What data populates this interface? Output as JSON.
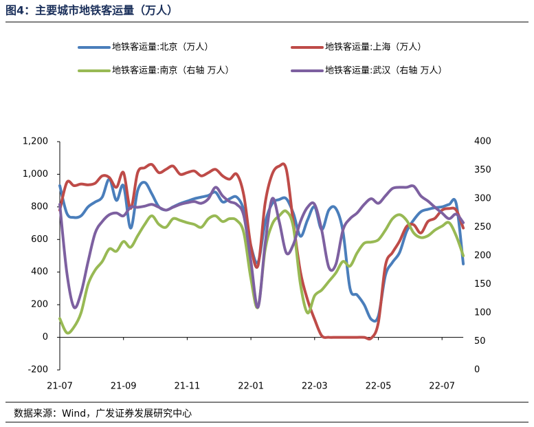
{
  "chart_data": {
    "type": "line",
    "title": "图4：主要城市地铁客运量（万人）",
    "categories": [
      "21-07",
      null,
      null,
      null,
      null,
      null,
      null,
      null,
      null,
      "21-09",
      null,
      null,
      null,
      null,
      null,
      null,
      null,
      null,
      "21-11",
      null,
      null,
      null,
      null,
      null,
      null,
      null,
      null,
      "22-01",
      null,
      null,
      null,
      null,
      null,
      null,
      null,
      null,
      "22-03",
      null,
      null,
      null,
      null,
      null,
      null,
      null,
      null,
      "22-05",
      null,
      null,
      null,
      null,
      null,
      null,
      null,
      null,
      "22-07",
      null,
      null,
      null
    ],
    "series": [
      {
        "name": "地铁客运量:北京（万人）",
        "color": "#4a7ebb",
        "axis": "y",
        "values": [
          930,
          760,
          735,
          745,
          800,
          830,
          860,
          970,
          840,
          930,
          670,
          900,
          950,
          880,
          800,
          780,
          800,
          820,
          835,
          850,
          860,
          870,
          890,
          830,
          850,
          860,
          780,
          560,
          460,
          700,
          820,
          845,
          850,
          760,
          620,
          720,
          800,
          660,
          780,
          790,
          650,
          300,
          260,
          200,
          110,
          130,
          380,
          460,
          520,
          650,
          720,
          770,
          785,
          795,
          800,
          815,
          820,
          450
        ]
      },
      {
        "name": "地铁客运量:上海（万人）",
        "color": "#be4b48",
        "axis": "y",
        "values": [
          780,
          950,
          930,
          940,
          935,
          945,
          990,
          980,
          920,
          1010,
          790,
          1010,
          1040,
          1060,
          1010,
          1030,
          1050,
          1000,
          1010,
          1020,
          990,
          1010,
          1030,
          990,
          970,
          1000,
          870,
          560,
          440,
          820,
          1000,
          1050,
          1030,
          700,
          400,
          230,
          110,
          10,
          0,
          0,
          0,
          0,
          0,
          0,
          -5,
          90,
          440,
          520,
          590,
          680,
          690,
          640,
          710,
          730,
          780,
          790,
          780,
          670
        ]
      },
      {
        "name": "地铁客运量:南京（右轴 万人）",
        "color": "#98b954",
        "axis": "y2",
        "values": [
          90,
          65,
          75,
          100,
          150,
          175,
          190,
          212,
          208,
          225,
          215,
          235,
          255,
          270,
          255,
          250,
          265,
          262,
          258,
          255,
          250,
          265,
          270,
          260,
          265,
          262,
          240,
          160,
          110,
          210,
          255,
          270,
          278,
          250,
          150,
          100,
          130,
          140,
          155,
          170,
          190,
          182,
          205,
          222,
          224,
          228,
          245,
          265,
          272,
          262,
          240,
          232,
          235,
          245,
          252,
          258,
          235,
          200
        ]
      },
      {
        "name": "地铁客运量:武汉（右轴 万人）",
        "color": "#7d60a0",
        "axis": "y2",
        "values": [
          290,
          170,
          110,
          135,
          190,
          240,
          260,
          272,
          275,
          270,
          285,
          285,
          287,
          290,
          285,
          280,
          285,
          290,
          293,
          295,
          292,
          300,
          320,
          305,
          295,
          290,
          270,
          190,
          110,
          220,
          300,
          260,
          205,
          220,
          260,
          285,
          290,
          245,
          180,
          185,
          245,
          265,
          275,
          290,
          300,
          292,
          305,
          318,
          320,
          320,
          322,
          305,
          296,
          285,
          275,
          265,
          273,
          258
        ]
      }
    ],
    "ylim": [
      -200,
      1200
    ],
    "yticks": [
      -200,
      0,
      200,
      400,
      600,
      800,
      {
        "value": 1000,
        "label": "1,000"
      },
      {
        "value": 1200,
        "label": "1,200"
      }
    ],
    "y2lim": [
      0,
      400
    ],
    "y2ticks": [
      0,
      50,
      100,
      150,
      200,
      250,
      300,
      350,
      400
    ],
    "legend": "top"
  },
  "source": "数据来源：Wind，广发证券发展研究中心"
}
